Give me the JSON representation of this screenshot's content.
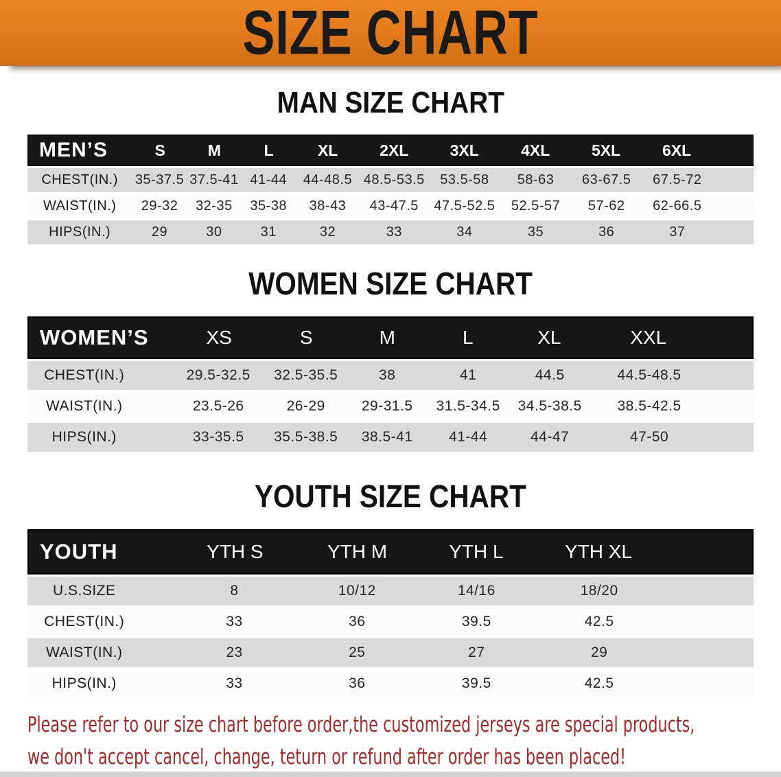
{
  "banner": {
    "title": "SIZE CHART"
  },
  "colors": {
    "banner_bg": "#E2791C",
    "banner_title_text": "#1A1A1A",
    "heading_text": "#111111",
    "header_bar_bg": "#161616",
    "row_shade_bg": "#DADADA",
    "row_plain_bg": "#FCFCFC",
    "note_text": "#A7292B"
  },
  "sections": {
    "men": {
      "heading": "MAN SIZE CHART",
      "table": {
        "header_label": "MEN’S",
        "sizes": [
          "S",
          "M",
          "L",
          "XL",
          "2XL",
          "3XL",
          "4XL",
          "5XL",
          "6XL"
        ],
        "rows": [
          {
            "label": "CHEST(IN.)",
            "values": [
              "35-37.5",
              "37.5-41",
              "41-44",
              "44-48.5",
              "48.5-53.5",
              "53.5-58",
              "58-63",
              "63-67.5",
              "67.5-72"
            ]
          },
          {
            "label": "WAIST(IN.)",
            "values": [
              "29-32",
              "32-35",
              "35-38",
              "38-43",
              "43-47.5",
              "47.5-52.5",
              "52.5-57",
              "57-62",
              "62-66.5"
            ]
          },
          {
            "label": "HIPS(IN.)",
            "values": [
              "29",
              "30",
              "31",
              "32",
              "33",
              "34",
              "35",
              "36",
              "37"
            ]
          }
        ]
      }
    },
    "women": {
      "heading": "WOMEN SIZE CHART",
      "table": {
        "header_label": "WOMEN’S",
        "sizes": [
          "XS",
          "S",
          "M",
          "L",
          "XL",
          "XXL"
        ],
        "rows": [
          {
            "label": "CHEST(IN.)",
            "values": [
              "29.5-32.5",
              "32.5-35.5",
              "38",
              "41",
              "44.5",
              "44.5-48.5"
            ]
          },
          {
            "label": "WAIST(IN.)",
            "values": [
              "23.5-26",
              "26-29",
              "29-31.5",
              "31.5-34.5",
              "34.5-38.5",
              "38.5-42.5"
            ]
          },
          {
            "label": "HIPS(IN.)",
            "values": [
              "33-35.5",
              "35.5-38.5",
              "38.5-41",
              "41-44",
              "44-47",
              "47-50"
            ]
          }
        ]
      }
    },
    "youth": {
      "heading": "YOUTH SIZE CHART",
      "table": {
        "header_label": "YOUTH",
        "sizes": [
          "YTH S",
          "YTH M",
          "YTH L",
          "YTH XL"
        ],
        "rows": [
          {
            "label": "U.S.SIZE",
            "values": [
              "8",
              "10/12",
              "14/16",
              "18/20"
            ]
          },
          {
            "label": "CHEST(IN.)",
            "values": [
              "33",
              "36",
              "39.5",
              "42.5"
            ]
          },
          {
            "label": "WAIST(IN.)",
            "values": [
              "23",
              "25",
              "27",
              "29"
            ]
          },
          {
            "label": "HIPS(IN.)",
            "values": [
              "33",
              "36",
              "39.5",
              "42.5"
            ]
          }
        ]
      }
    }
  },
  "footer_note": {
    "line1": "Please refer to our size chart before order,the customized jerseys are special products,",
    "line2": "we don't accept cancel, change, teturn or refund after order has been placed!"
  }
}
